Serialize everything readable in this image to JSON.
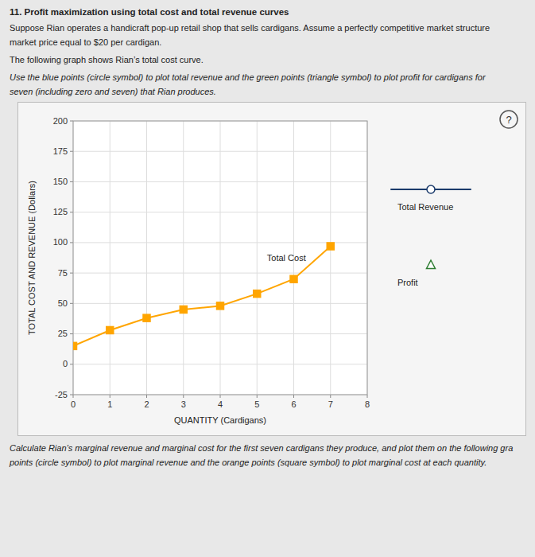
{
  "chart_data": {
    "type": "line",
    "title": "11. Profit maximization using total cost and total revenue curves",
    "subtitle": [
      "Suppose Rian operates a handicraft pop-up retail shop that sells cardigans. Assume a perfectly competitive market structure",
      "market price equal to $20 per cardigan.",
      "The following graph shows Rian’s total cost curve.",
      "Use the blue points (circle symbol) to plot total revenue and the green points (triangle symbol) to plot profit for cardigans for",
      "seven (including zero and seven) that Rian produces."
    ],
    "footer": [
      "Calculate Rian’s marginal revenue and marginal cost for the first seven cardigans they produce, and plot them on the following gra",
      "points (circle symbol) to plot marginal revenue and the orange points (square symbol) to plot marginal cost at each quantity."
    ],
    "x_label": "QUANTITY (Cardigans)",
    "y_label": "TOTAL COST AND REVENUE (Dollars)",
    "x": [
      0,
      1,
      2,
      3,
      4,
      5,
      6,
      7
    ],
    "series": [
      {
        "color": "#FFA500",
        "marker": "square",
        "line_style": "solid",
        "values": [
          15,
          28,
          38,
          45,
          48,
          58,
          70,
          97
        ]
      },
      {
        "name": "Total Revenue",
        "color": "#1a3a6b",
        "marker": "circle",
        "line_style": "solid",
        "values": [
          null,
          null,
          null,
          null,
          null,
          null,
          null,
          null
        ]
      },
      {
        "name": "Profit",
        "color": "#2E7D32",
        "marker": "triangle",
        "line_style": "none",
        "values": [
          null,
          null,
          null,
          null,
          null,
          null,
          null,
          null
        ]
      }
    ],
    "annotations": [
      {
        "text": "Total Cost",
        "x": 5.8,
        "y": 85
      },
      {
        "text": "?"
      }
    ],
    "xlim": [
      0,
      8
    ],
    "ylim": [
      -25,
      200
    ],
    "xticks": [
      0,
      1,
      2,
      3,
      4,
      5,
      6,
      7,
      8
    ],
    "yticks": [
      -25,
      0,
      25,
      50,
      75,
      100,
      125,
      150,
      175,
      200
    ],
    "grid": true
  }
}
